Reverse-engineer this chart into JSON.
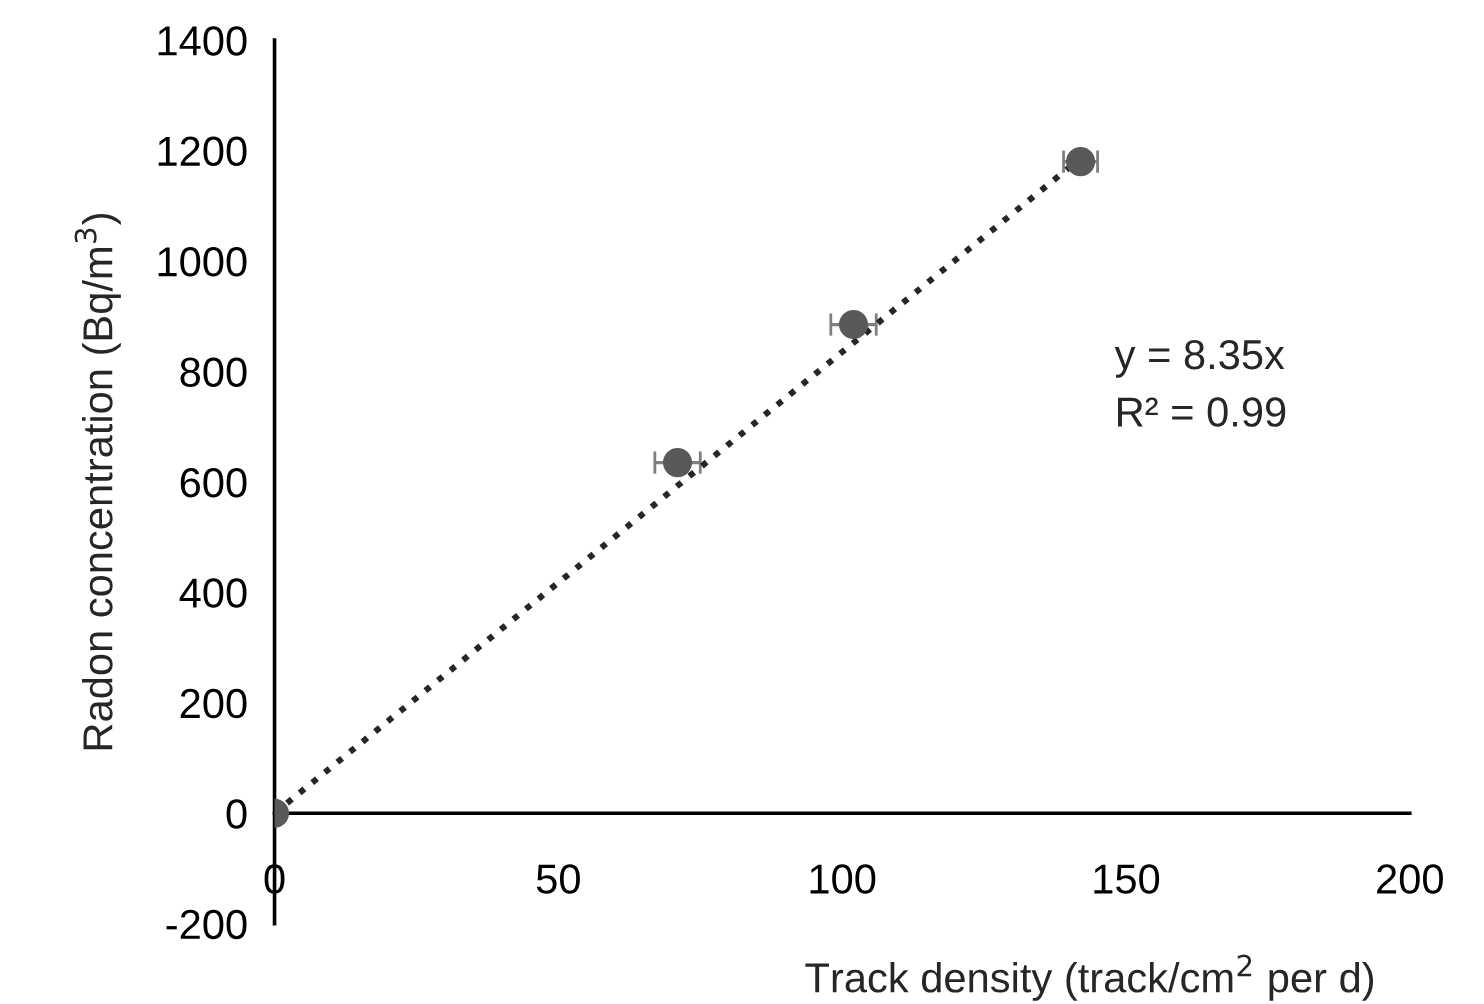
{
  "chart_data": {
    "type": "scatter",
    "xlabel": "Track density (track/cm$^{2}$ per d)",
    "ylabel": "Radon concentration (Bq/m$^{3}$)",
    "x": [
      0,
      71,
      102,
      142
    ],
    "series": [
      {
        "color": "#595959",
        "values": [
          0,
          635,
          885,
          1180
        ],
        "xerrors": [
          null,
          4,
          4,
          3
        ],
        "marker": "circle"
      },
      {
        "type": "line",
        "color": "#262626",
        "x": [
          0,
          142
        ],
        "values": [
          0,
          1186
        ],
        "line_style": "dotted"
      }
    ],
    "annotations": [
      "y = 8.35x",
      "R² = 0.99"
    ],
    "xlim": [
      0,
      200
    ],
    "xticks": [
      0,
      50,
      100,
      150,
      200
    ],
    "ylim": [
      -200,
      1400
    ],
    "yticks": [
      -200,
      0,
      200,
      400,
      600,
      800,
      1000,
      1200,
      1400
    ],
    "grid": false,
    "legend": false
  }
}
